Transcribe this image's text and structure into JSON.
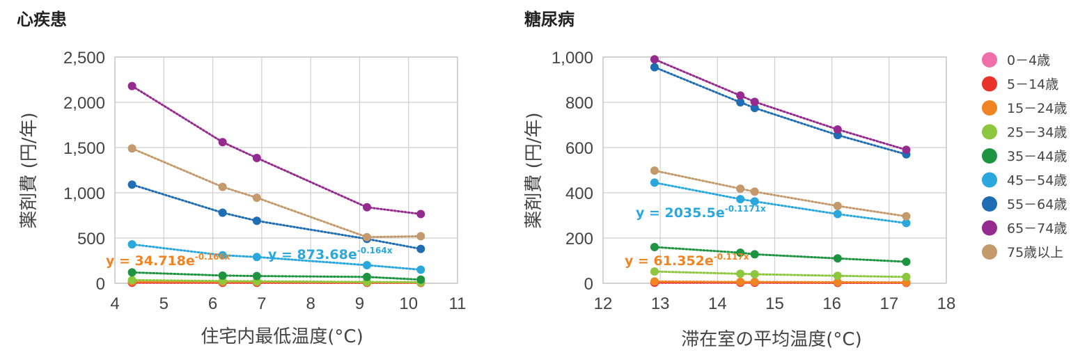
{
  "colors": {
    "0-4": "#f06fa8",
    "5-14": "#e8332b",
    "15-24": "#f08422",
    "25-34": "#8dc63f",
    "35-44": "#1e9340",
    "45-54": "#2aa8de",
    "55-64": "#1f6db2",
    "65-74": "#962b8f",
    "75+": "#c49a6c"
  },
  "legend": [
    {
      "key": "0-4",
      "label": "0－4歳"
    },
    {
      "key": "5-14",
      "label": "5－14歳"
    },
    {
      "key": "15-24",
      "label": "15－24歳"
    },
    {
      "key": "25-34",
      "label": "25－34歳"
    },
    {
      "key": "35-44",
      "label": "35－44歳"
    },
    {
      "key": "45-54",
      "label": "45－54歳"
    },
    {
      "key": "55-64",
      "label": "55－64歳"
    },
    {
      "key": "65-74",
      "label": "65－74歳"
    },
    {
      "key": "75+",
      "label": "75歳以上"
    }
  ],
  "chart_data": [
    {
      "type": "scatter",
      "title": "心疾患",
      "xlabel": "住宅内最低温度(°C)",
      "ylabel": "薬剤費 (円/年)",
      "xlim": [
        4,
        11
      ],
      "ylim": [
        0,
        2500
      ],
      "xticks": [
        4,
        5,
        6,
        7,
        8,
        9,
        10,
        11
      ],
      "yticks": [
        0,
        500,
        1000,
        1500,
        2000,
        2500
      ],
      "xtick_labels": [
        "4",
        "5",
        "6",
        "7",
        "8",
        "9",
        "10",
        "11"
      ],
      "ytick_labels": [
        "0",
        "500",
        "1,000",
        "1,500",
        "2,000",
        "2,500"
      ],
      "x": [
        4.35,
        6.2,
        6.9,
        9.15,
        10.25
      ],
      "series": [
        {
          "key": "0-4",
          "values": [
            5,
            5,
            5,
            5,
            5
          ]
        },
        {
          "key": "5-14",
          "values": [
            8,
            6,
            6,
            5,
            5
          ]
        },
        {
          "key": "15-24",
          "values": [
            18,
            15,
            14,
            10,
            8
          ]
        },
        {
          "key": "25-34",
          "values": [
            35,
            25,
            22,
            15,
            12
          ]
        },
        {
          "key": "35-44",
          "values": [
            120,
            85,
            80,
            70,
            40
          ]
        },
        {
          "key": "45-54",
          "values": [
            430,
            310,
            290,
            200,
            150
          ]
        },
        {
          "key": "55-64",
          "values": [
            1090,
            780,
            690,
            490,
            380
          ]
        },
        {
          "key": "65-74",
          "values": [
            2180,
            1560,
            1385,
            840,
            765
          ]
        },
        {
          "key": "75+",
          "values": [
            1490,
            1065,
            945,
            510,
            520
          ]
        }
      ],
      "annotations": [
        {
          "key": "15-24",
          "base": "y = 34.718e",
          "exp": "-0.166x"
        },
        {
          "key": "45-54",
          "base": "y = 873.68e",
          "exp": "-0.164x"
        }
      ]
    },
    {
      "type": "scatter",
      "title": "糖尿病",
      "xlabel": "滞在室の平均温度(°C)",
      "ylabel": "薬剤費 (円/年)",
      "xlim": [
        12,
        18
      ],
      "ylim": [
        0,
        1000
      ],
      "xticks": [
        12,
        13,
        14,
        15,
        16,
        17,
        18
      ],
      "yticks": [
        0,
        200,
        400,
        600,
        800,
        1000
      ],
      "xtick_labels": [
        "12",
        "13",
        "14",
        "15",
        "16",
        "17",
        "18"
      ],
      "ytick_labels": [
        "0",
        "200",
        "400",
        "600",
        "800",
        "1,000"
      ],
      "x": [
        12.9,
        14.4,
        14.65,
        16.1,
        17.3
      ],
      "series": [
        {
          "key": "0-4",
          "values": [
            2,
            2,
            2,
            2,
            2
          ]
        },
        {
          "key": "5-14",
          "values": [
            3,
            3,
            3,
            2,
            2
          ]
        },
        {
          "key": "15-24",
          "values": [
            8,
            6,
            6,
            5,
            4
          ]
        },
        {
          "key": "25-34",
          "values": [
            52,
            42,
            40,
            33,
            28
          ]
        },
        {
          "key": "35-44",
          "values": [
            160,
            135,
            128,
            110,
            95
          ]
        },
        {
          "key": "45-54",
          "values": [
            445,
            372,
            362,
            306,
            266
          ]
        },
        {
          "key": "55-64",
          "values": [
            955,
            800,
            775,
            655,
            570
          ]
        },
        {
          "key": "65-74",
          "values": [
            990,
            830,
            802,
            680,
            590
          ]
        },
        {
          "key": "75+",
          "values": [
            498,
            418,
            405,
            342,
            296
          ]
        }
      ],
      "annotations": [
        {
          "key": "15-24",
          "base": "y = 61.352e",
          "exp": "-0.117x"
        },
        {
          "key": "45-54",
          "base": "y = 2035.5e",
          "exp": "-0.1171x"
        }
      ]
    }
  ]
}
